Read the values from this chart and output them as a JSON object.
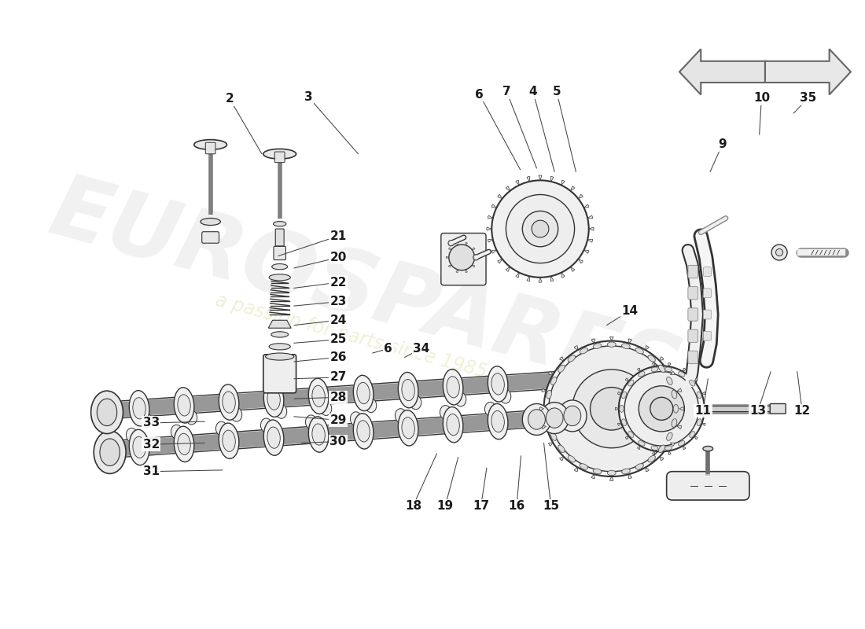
{
  "bg": "#ffffff",
  "lc": "#1a1a1a",
  "fs": 11,
  "line_color": "#222222",
  "part_color": "#f8f8f8",
  "part_edge": "#333333",
  "watermark1": "EUROSPARES",
  "watermark2": "a passion for parts since 1985",
  "labels": [
    [
      "2",
      210,
      98,
      255,
      175
    ],
    [
      "3",
      320,
      95,
      390,
      175
    ],
    [
      "6",
      560,
      92,
      617,
      197
    ],
    [
      "7",
      598,
      88,
      640,
      195
    ],
    [
      "4",
      635,
      88,
      665,
      200
    ],
    [
      "5",
      668,
      88,
      695,
      200
    ],
    [
      "10",
      955,
      97,
      952,
      148
    ],
    [
      "35",
      1020,
      97,
      1000,
      118
    ],
    [
      "9",
      900,
      162,
      883,
      200
    ],
    [
      "21",
      362,
      290,
      278,
      318
    ],
    [
      "20",
      362,
      320,
      300,
      335
    ],
    [
      "22",
      362,
      355,
      300,
      363
    ],
    [
      "23",
      362,
      382,
      300,
      388
    ],
    [
      "24",
      362,
      408,
      300,
      415
    ],
    [
      "6",
      432,
      448,
      410,
      454
    ],
    [
      "34",
      478,
      448,
      455,
      460
    ],
    [
      "25",
      362,
      435,
      300,
      440
    ],
    [
      "26",
      362,
      460,
      300,
      466
    ],
    [
      "27",
      362,
      488,
      300,
      490
    ],
    [
      "28",
      362,
      516,
      300,
      518
    ],
    [
      "29",
      362,
      548,
      300,
      543
    ],
    [
      "30",
      362,
      578,
      310,
      580
    ],
    [
      "14",
      770,
      395,
      738,
      415
    ],
    [
      "33",
      100,
      552,
      175,
      550
    ],
    [
      "32",
      100,
      582,
      175,
      580
    ],
    [
      "31",
      100,
      620,
      200,
      618
    ],
    [
      "18",
      467,
      668,
      500,
      595
    ],
    [
      "19",
      512,
      668,
      530,
      600
    ],
    [
      "17",
      562,
      668,
      570,
      615
    ],
    [
      "16",
      612,
      668,
      618,
      598
    ],
    [
      "15",
      660,
      668,
      650,
      580
    ],
    [
      "11",
      873,
      535,
      880,
      490
    ],
    [
      "13",
      950,
      535,
      968,
      480
    ],
    [
      "12",
      1012,
      535,
      1005,
      480
    ]
  ]
}
